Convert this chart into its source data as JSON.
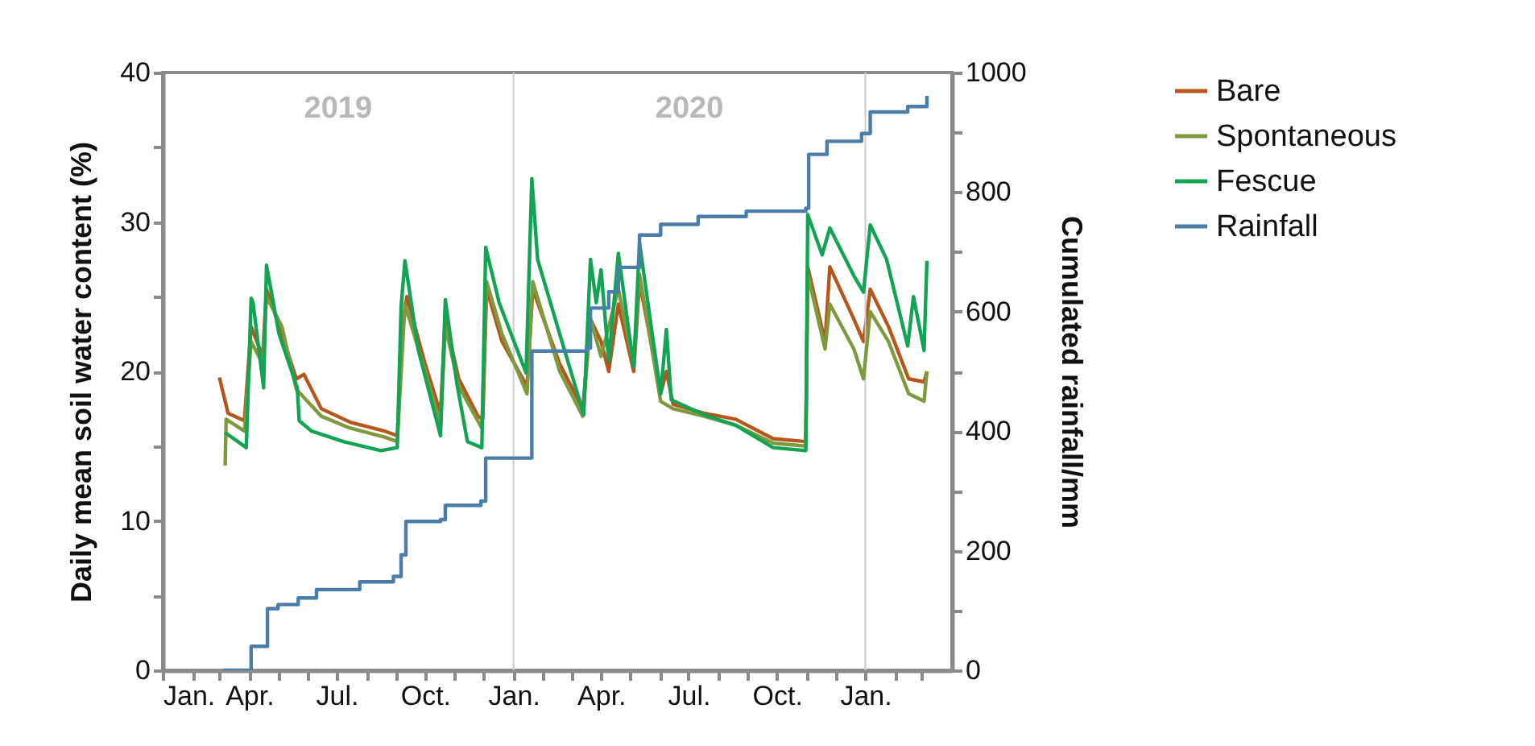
{
  "chart_data": {
    "type": "line",
    "ylabel": "Daily mean soil water content (%)",
    "y2label": "Cumulated rainfall/mm",
    "legend": "right",
    "xlim": [
      "2019-01-01",
      "2021-04-01"
    ],
    "xticks": [
      {
        "value": "2019-01-01",
        "label": "Jan."
      },
      {
        "value": "2019-02-01",
        "label": null
      },
      {
        "value": "2019-03-01",
        "label": null
      },
      {
        "value": "2019-04-01",
        "label": "Apr."
      },
      {
        "value": "2019-05-01",
        "label": null
      },
      {
        "value": "2019-06-01",
        "label": null
      },
      {
        "value": "2019-07-01",
        "label": "Jul."
      },
      {
        "value": "2019-08-01",
        "label": null
      },
      {
        "value": "2019-09-01",
        "label": null
      },
      {
        "value": "2019-10-01",
        "label": "Oct."
      },
      {
        "value": "2019-11-01",
        "label": null
      },
      {
        "value": "2019-12-01",
        "label": null
      },
      {
        "value": "2020-01-01",
        "label": "Jan."
      },
      {
        "value": "2020-02-01",
        "label": null
      },
      {
        "value": "2020-03-01",
        "label": null
      },
      {
        "value": "2020-04-01",
        "label": "Apr."
      },
      {
        "value": "2020-05-01",
        "label": null
      },
      {
        "value": "2020-06-01",
        "label": null
      },
      {
        "value": "2020-07-01",
        "label": "Jul."
      },
      {
        "value": "2020-08-01",
        "label": null
      },
      {
        "value": "2020-09-01",
        "label": null
      },
      {
        "value": "2020-10-01",
        "label": "Oct."
      },
      {
        "value": "2020-11-01",
        "label": null
      },
      {
        "value": "2020-12-01",
        "label": null
      },
      {
        "value": "2021-01-01",
        "label": "Jan."
      },
      {
        "value": "2021-02-01",
        "label": null
      },
      {
        "value": "2021-03-01",
        "label": null
      }
    ],
    "ylim": [
      0,
      40
    ],
    "yticks": [
      0,
      {
        "value": 5,
        "label": null
      },
      10,
      {
        "value": 15,
        "label": null
      },
      20,
      {
        "value": 25,
        "label": null
      },
      30,
      {
        "value": 35,
        "label": null
      },
      40
    ],
    "y2lim": [
      0,
      1000
    ],
    "y2ticks": [
      0,
      {
        "value": 100,
        "label": null
      },
      200,
      {
        "value": 300,
        "label": null
      },
      400,
      {
        "value": 500,
        "label": null
      },
      600,
      {
        "value": 700,
        "label": null
      },
      800,
      {
        "value": 900,
        "label": null
      },
      1000
    ],
    "ref_lines": [
      {
        "axis": "x",
        "value": "2020-01-01",
        "color": "#cccccc"
      },
      {
        "axis": "x",
        "value": "2021-01-01",
        "color": "#cccccc"
      }
    ],
    "annotations": [
      "2019",
      "2020"
    ],
    "series": [
      {
        "name": "Bare",
        "color": "#b5561d",
        "x": [
          "2019-03-01",
          "2019-03-10",
          "2019-03-27",
          "2019-04-03",
          "2019-04-15",
          "2019-04-19",
          "2019-05-05",
          "2019-05-20",
          "2019-05-28",
          "2019-06-15",
          "2019-07-15",
          "2019-08-20",
          "2019-09-02",
          "2019-09-08",
          "2019-09-12",
          "2019-10-01",
          "2019-10-17",
          "2019-10-22",
          "2019-11-05",
          "2019-11-25",
          "2019-11-30",
          "2019-12-04",
          "2019-12-20",
          "2020-01-15",
          "2020-01-21",
          "2020-02-18",
          "2020-03-13",
          "2020-03-21",
          "2020-04-01",
          "2020-04-09",
          "2020-04-19",
          "2020-05-05",
          "2020-05-11",
          "2020-06-02",
          "2020-06-08",
          "2020-06-15",
          "2020-07-17",
          "2020-08-19",
          "2020-09-27",
          "2020-10-31",
          "2020-11-02",
          "2020-11-20",
          "2020-11-25",
          "2020-12-20",
          "2020-12-30",
          "2021-01-06",
          "2021-01-25",
          "2021-02-15",
          "2021-03-03",
          "2021-03-06"
        ],
        "values": [
          19.6,
          17.2,
          16.7,
          23.0,
          21.0,
          25.5,
          22.5,
          19.5,
          19.8,
          17.5,
          16.6,
          16.0,
          15.7,
          23.0,
          25.0,
          20.5,
          17.2,
          23.5,
          19.5,
          17.0,
          16.8,
          25.5,
          22.0,
          19.0,
          25.5,
          20.5,
          17.5,
          23.5,
          22.0,
          20.0,
          24.5,
          20.0,
          26.0,
          18.5,
          20.0,
          17.8,
          17.2,
          16.8,
          15.5,
          15.3,
          27.0,
          22.0,
          27.0,
          23.5,
          22.0,
          25.5,
          23.0,
          19.5,
          19.3,
          20.0
        ]
      },
      {
        "name": "Spontaneous",
        "color": "#7f9a3e",
        "x": [
          "2019-03-07",
          "2019-03-08",
          "2019-03-27",
          "2019-04-03",
          "2019-04-15",
          "2019-04-19",
          "2019-05-05",
          "2019-05-20",
          "2019-06-15",
          "2019-07-15",
          "2019-08-20",
          "2019-09-02",
          "2019-09-10",
          "2019-10-01",
          "2019-10-17",
          "2019-10-22",
          "2019-11-05",
          "2019-11-29",
          "2019-12-04",
          "2019-12-20",
          "2020-01-15",
          "2020-01-21",
          "2020-02-18",
          "2020-03-13",
          "2020-03-21",
          "2020-04-01",
          "2020-04-19",
          "2020-05-05",
          "2020-05-11",
          "2020-06-02",
          "2020-06-15",
          "2020-07-17",
          "2020-08-19",
          "2020-09-27",
          "2020-10-31",
          "2020-11-02",
          "2020-11-20",
          "2020-11-25",
          "2020-12-20",
          "2020-12-30",
          "2021-01-06",
          "2021-01-25",
          "2021-02-15",
          "2021-03-03",
          "2021-03-06"
        ],
        "values": [
          13.7,
          16.8,
          16.0,
          22.0,
          20.5,
          25.0,
          23.0,
          18.8,
          17.0,
          16.2,
          15.6,
          15.3,
          24.5,
          20.0,
          16.4,
          23.0,
          19.0,
          16.2,
          26.0,
          22.5,
          18.5,
          26.0,
          20.0,
          17.0,
          23.5,
          21.0,
          25.5,
          20.5,
          26.5,
          18.0,
          17.5,
          17.0,
          16.4,
          15.2,
          15.0,
          26.5,
          21.5,
          24.5,
          21.5,
          19.5,
          24.0,
          22.0,
          18.5,
          18.0,
          20.0
        ]
      },
      {
        "name": "Fescue",
        "color": "#12a454",
        "x": [
          "2019-03-07",
          "2019-03-29",
          "2019-04-03",
          "2019-04-05",
          "2019-04-16",
          "2019-04-19",
          "2019-05-02",
          "2019-05-21",
          "2019-05-23",
          "2019-06-05",
          "2019-07-08",
          "2019-08-16",
          "2019-09-02",
          "2019-09-06",
          "2019-09-10",
          "2019-09-24",
          "2019-10-17",
          "2019-10-22",
          "2019-11-03",
          "2019-11-14",
          "2019-11-29",
          "2019-12-03",
          "2019-12-17",
          "2020-01-14",
          "2020-01-20",
          "2020-01-26",
          "2020-02-18",
          "2020-03-14",
          "2020-03-21",
          "2020-03-27",
          "2020-04-01",
          "2020-04-09",
          "2020-04-19",
          "2020-05-05",
          "2020-05-11",
          "2020-06-02",
          "2020-06-08",
          "2020-06-13",
          "2020-07-17",
          "2020-08-19",
          "2020-09-27",
          "2020-10-31",
          "2020-11-02",
          "2020-11-17",
          "2020-11-25",
          "2020-12-20",
          "2020-12-30",
          "2021-01-06",
          "2021-01-23",
          "2021-02-14",
          "2021-02-20",
          "2021-03-03",
          "2021-03-06"
        ],
        "values": [
          15.9,
          14.9,
          24.9,
          24.6,
          18.9,
          27.1,
          22.5,
          18.9,
          16.7,
          16.0,
          15.3,
          14.7,
          14.9,
          24.3,
          27.4,
          21.4,
          15.7,
          24.8,
          19.2,
          15.3,
          14.9,
          28.3,
          24.6,
          19.9,
          32.9,
          27.5,
          22.5,
          17.1,
          27.5,
          24.6,
          26.8,
          20.7,
          27.9,
          20.3,
          28.6,
          18.5,
          22.8,
          18.1,
          17.1,
          16.4,
          14.9,
          14.7,
          30.5,
          27.8,
          29.6,
          26.4,
          25.3,
          29.8,
          27.5,
          21.7,
          25.0,
          21.4,
          27.4
        ]
      },
      {
        "name": "Rainfall",
        "color": "#4a7ea8",
        "type": "step",
        "axis": "y2",
        "x": [
          "2019-03-05",
          "2019-03-29",
          "2019-04-03",
          "2019-04-20",
          "2019-05-01",
          "2019-05-22",
          "2019-06-10",
          "2019-07-25",
          "2019-08-29",
          "2019-09-06",
          "2019-09-11",
          "2019-10-17",
          "2019-10-22",
          "2019-11-28",
          "2019-12-03",
          "2020-01-18",
          "2020-01-20",
          "2020-03-17",
          "2020-03-21",
          "2020-04-09",
          "2020-04-19",
          "2020-05-05",
          "2020-05-11",
          "2020-06-02",
          "2020-07-11",
          "2020-08-30",
          "2020-10-31",
          "2020-11-03",
          "2020-11-22",
          "2020-12-28",
          "2021-01-06",
          "2021-02-14",
          "2021-03-06"
        ],
        "values": [
          0,
          0,
          40,
          103,
          110,
          121,
          135,
          148,
          157,
          193,
          249,
          252,
          276,
          283,
          355,
          355,
          534,
          539,
          606,
          633,
          674,
          674,
          728,
          746,
          759,
          768,
          773,
          863,
          885,
          898,
          934,
          943,
          961
        ]
      }
    ]
  }
}
